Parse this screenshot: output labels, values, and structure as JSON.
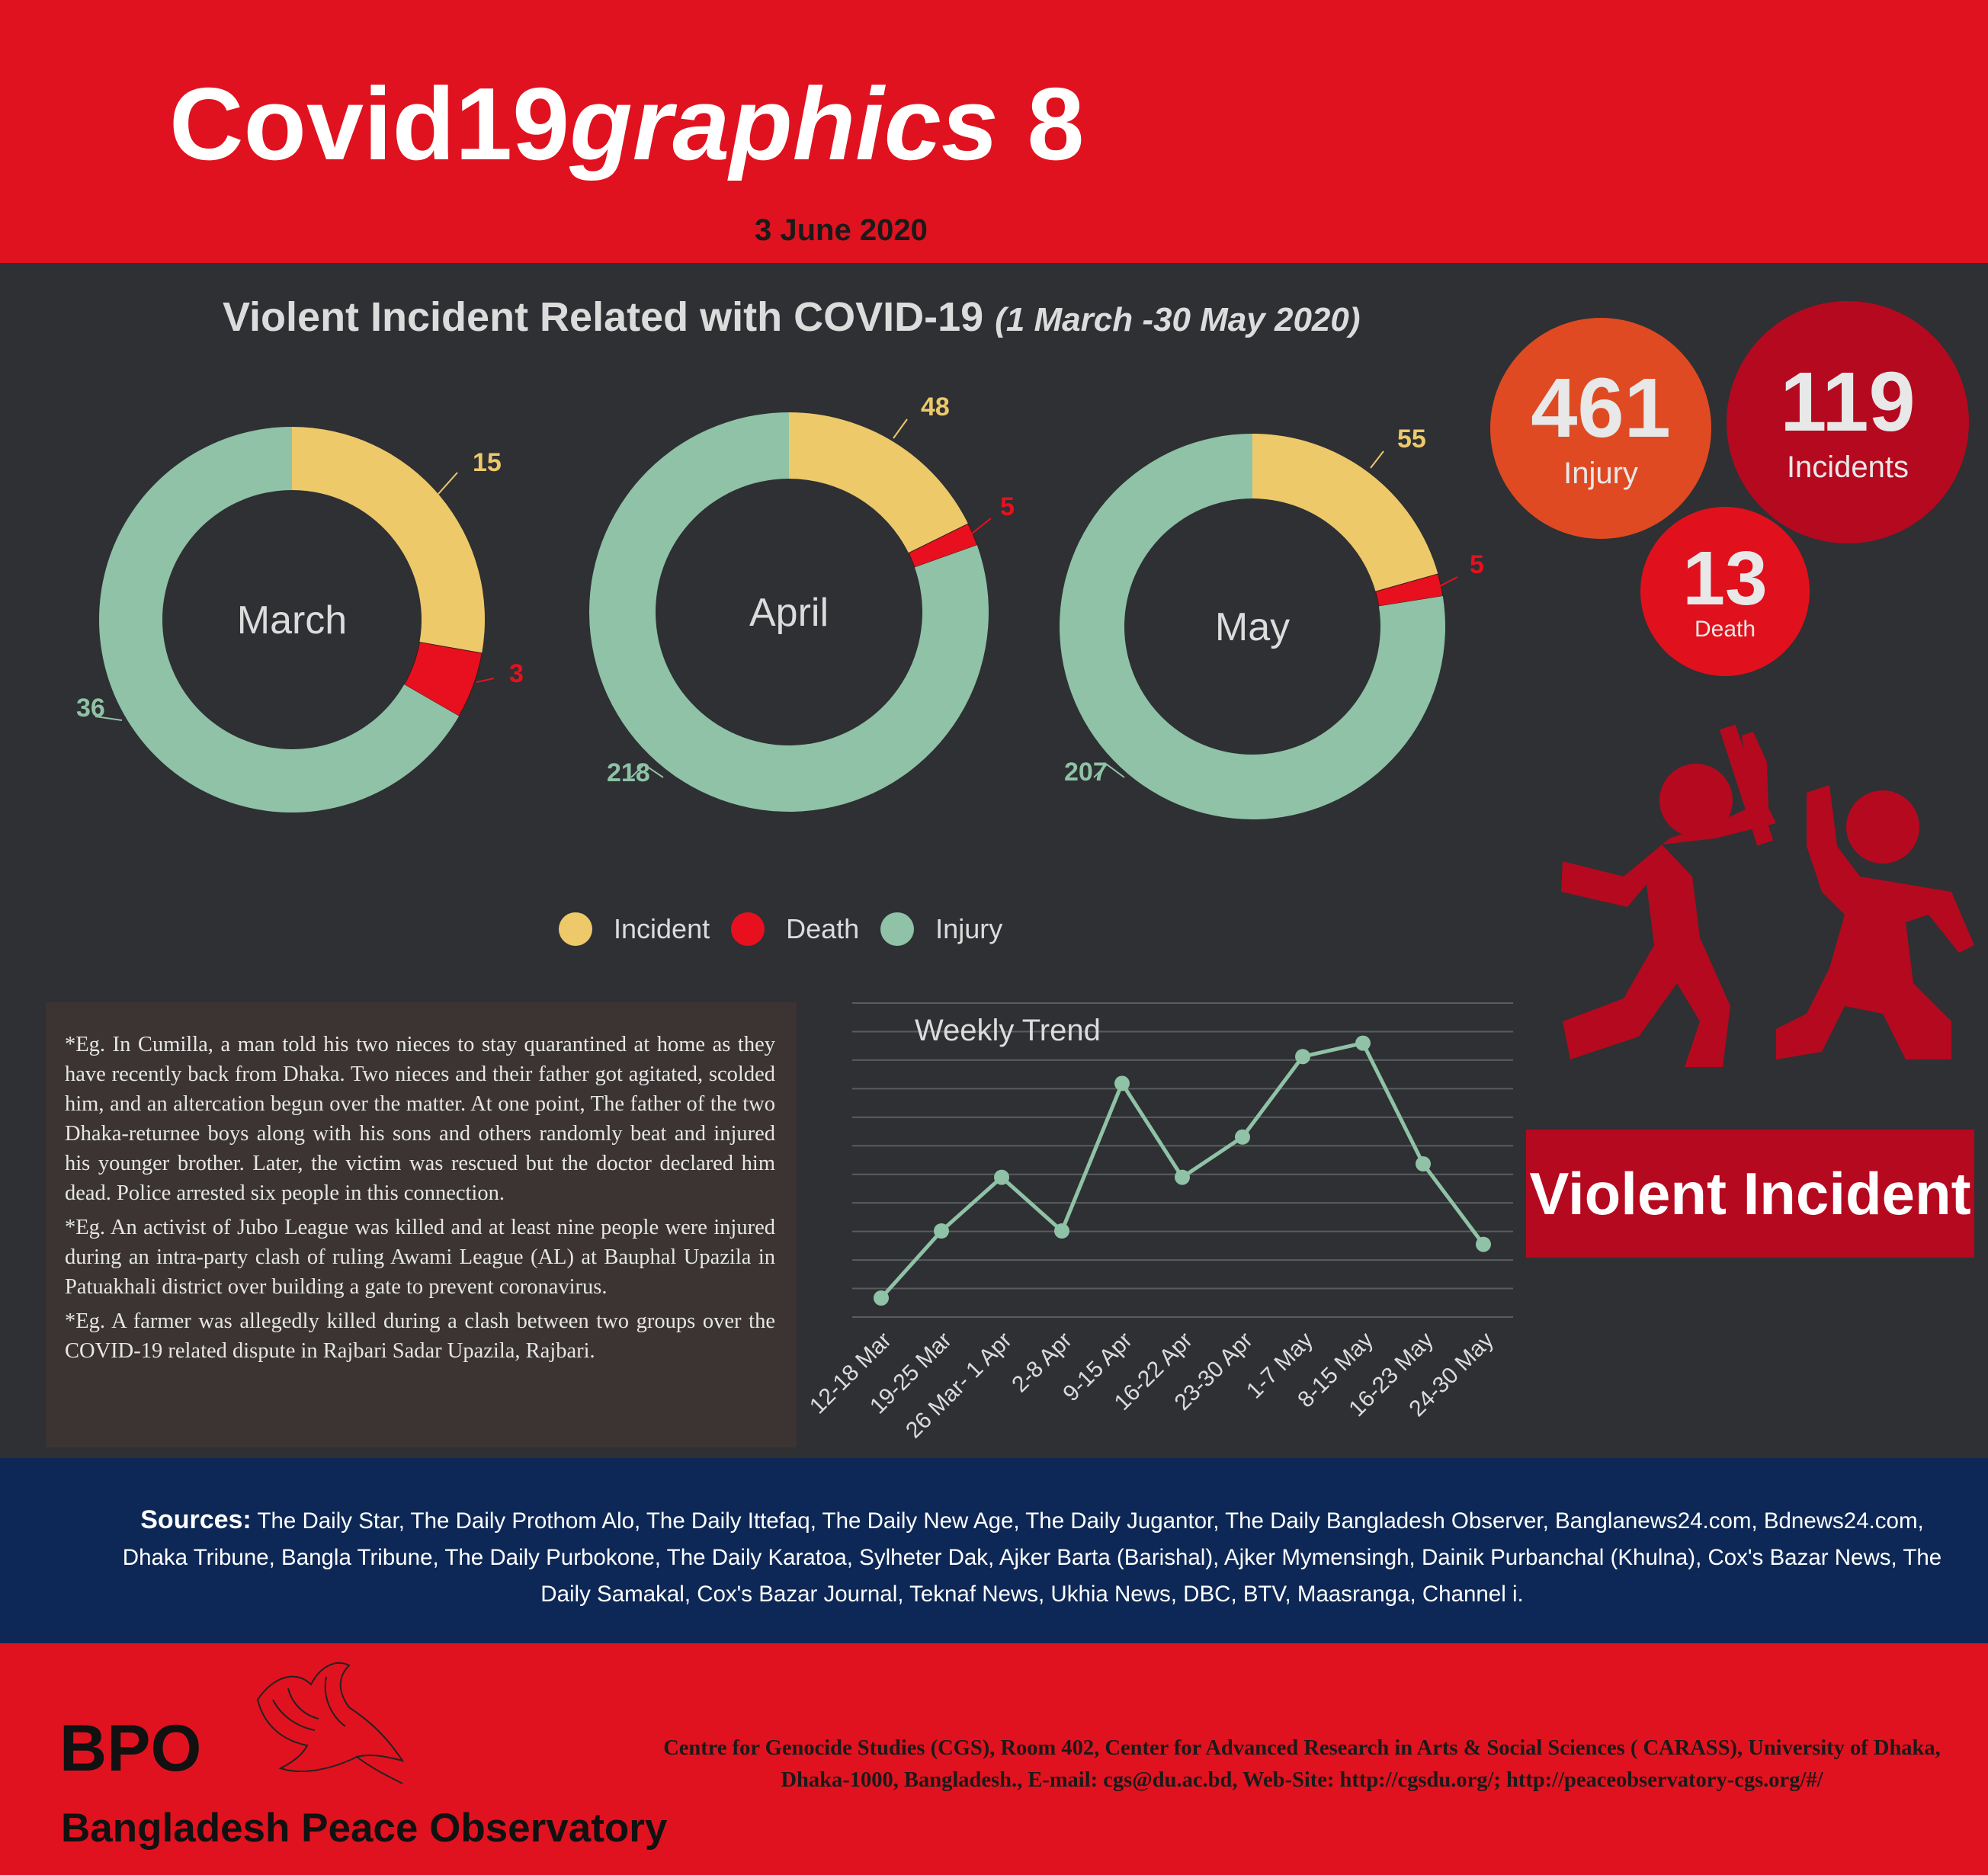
{
  "header": {
    "title_main": "Covid19",
    "title_italic": "graphics",
    "title_num": " 8",
    "date": "3 June 2020"
  },
  "main": {
    "title": "Violent Incident Related with COVID-19",
    "period": "(1 March -30 May 2020)"
  },
  "totals": {
    "injury": {
      "value": "461",
      "label": "Injury"
    },
    "incidents": {
      "value": "119",
      "label": "Incidents"
    },
    "death": {
      "value": "13",
      "label": "Death"
    }
  },
  "violent_label": "Violent Incident",
  "colors": {
    "incident": "#edc96a",
    "death": "#e8101f",
    "injury": "#8fc2a6",
    "header_red": "#e0121f",
    "injury_bubble": "#e04a22",
    "incidents_bubble": "#b5091f",
    "death_bubble": "#e0111c"
  },
  "chart_data": [
    {
      "type": "pie",
      "title": "March",
      "categories": [
        "Incident",
        "Death",
        "Injury"
      ],
      "values": [
        15,
        3,
        36
      ]
    },
    {
      "type": "pie",
      "title": "April",
      "categories": [
        "Incident",
        "Death",
        "Injury"
      ],
      "values": [
        48,
        5,
        218
      ]
    },
    {
      "type": "pie",
      "title": "May",
      "categories": [
        "Incident",
        "Death",
        "Injury"
      ],
      "values": [
        55,
        5,
        207
      ]
    },
    {
      "type": "line",
      "title": "Weekly Trend",
      "x": [
        "12-18 Mar",
        "19-25 Mar",
        "26 Mar- 1 Apr",
        "2-8 Apr",
        "9-15 Apr",
        "16-22 Apr",
        "23-30 Apr",
        "1-7 May",
        "8-15 May",
        "16-23 May",
        "24-30 May"
      ],
      "series": [
        {
          "values": [
            0,
            5,
            9,
            5,
            16,
            9,
            12,
            18,
            19,
            10,
            4
          ]
        }
      ],
      "ylim": [
        0,
        20
      ],
      "grid": true
    }
  ],
  "legend": [
    "Incident",
    "Death",
    "Injury"
  ],
  "story": [
    "*Eg. In Cumilla, a man told his two nieces to stay quarantined at home as they have recently back from Dhaka. Two nieces and their father got agitated, scolded him, and an altercation begun over the matter. At one point, The father of the two Dhaka-returnee boys along with his sons and others randomly beat and injured his younger brother. Later, the victim was rescued but the doctor declared him dead. Police arrested six people in this connection.",
    "*Eg. An activist of Jubo League was killed and at least nine people were injured during an intra-party clash of ruling Awami League (AL) at Bauphal Upazila in Patuakhali district over building a gate to prevent coronavirus.",
    "*Eg. A farmer was allegedly killed during a    clash between two groups over the COVID-19 related dispute in Rajbari Sadar   Upazila, Rajbari."
  ],
  "sources": {
    "label": "Sources:",
    "text": "The Daily Star, The Daily Prothom Alo, The Daily Ittefaq, The Daily New Age, The Daily Jugantor, The Daily Bangladesh Observer, Banglanews24.com, Bdnews24.com, Dhaka Tribune, Bangla Tribune,  The Daily Purbokone, The Daily Karatoa, Sylheter Dak, Ajker Barta (Barishal), Ajker Mymensingh, Dainik Purbanchal (Khulna), Cox's Bazar News, The Daily Samakal, Cox's Bazar Journal, Teknaf News, Ukhia News, DBC, BTV, Maasranga, Channel i."
  },
  "footer": {
    "acronym": "BPO",
    "name": "Bangladesh Peace Observatory",
    "address": "Centre for Genocide Studies (CGS), Room 402, Center for Advanced Research in Arts & Social Sciences ( CARASS), University of Dhaka, Dhaka-1000, Bangladesh., E-mail: cgs@du.ac.bd, Web-Site: http://cgsdu.org/; http://peaceobservatory-cgs.org/#/"
  }
}
